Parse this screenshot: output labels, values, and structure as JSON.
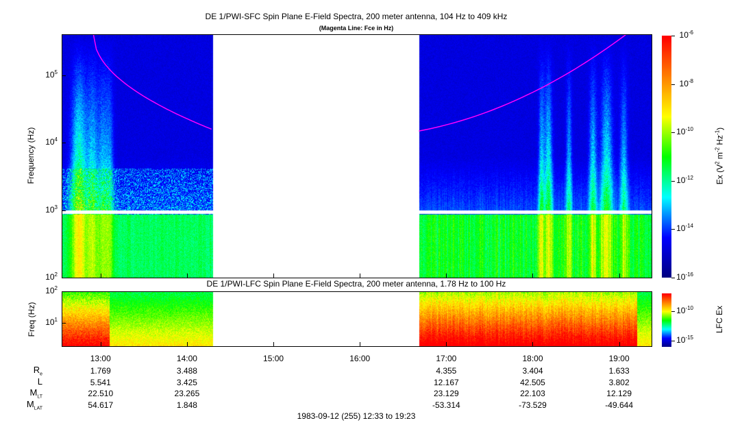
{
  "chart_data": [
    {
      "type": "heatmap",
      "title": "DE 1/PWI-SFC  Spin Plane E-Field Spectra, 200 meter antenna, 104 Hz to 409 kHz",
      "subtitle": "(Magenta Line: Fce in Hz)",
      "ylabel": "Frequency (Hz)",
      "yscale": "log",
      "ylim": [
        100,
        409000
      ],
      "yticks": [
        {
          "b": "10",
          "e": "2",
          "v": 100
        },
        {
          "b": "10",
          "e": "3",
          "v": 1000
        },
        {
          "b": "10",
          "e": "4",
          "v": 10000
        },
        {
          "b": "10",
          "e": "5",
          "v": 100000
        }
      ],
      "xlim": [
        "12:33",
        "19:23"
      ],
      "data_gap": [
        "14:18",
        "16:41"
      ],
      "colorbar": {
        "label": "Ex (V2 m-2 Hz-1)",
        "label_parts": [
          "Ex (V",
          "2",
          " m",
          "-2",
          " Hz",
          "-1",
          ")"
        ],
        "scale": "log",
        "range": [
          1e-16,
          1e-06
        ],
        "ticks": [
          {
            "b": "10",
            "e": "-6",
            "v": -6
          },
          {
            "b": "10",
            "e": "-8",
            "v": -8
          },
          {
            "b": "10",
            "e": "-10",
            "v": -10
          },
          {
            "b": "10",
            "e": "-12",
            "v": -12
          },
          {
            "b": "10",
            "e": "-14",
            "v": -14
          },
          {
            "b": "10",
            "e": "-16",
            "v": -16
          }
        ]
      },
      "fce_line": {
        "color": "#ff00ff",
        "segments": [
          {
            "time": [
              "12:55",
              "14:17"
            ],
            "fce_hz": [
              409000,
              16000
            ]
          },
          {
            "time": [
              "16:41",
              "19:05"
            ],
            "fce_hz": [
              15000,
              409000
            ]
          }
        ]
      }
    },
    {
      "type": "heatmap",
      "title": "DE 1/PWI-LFC  Spin Plane E-Field Spectra, 200 meter antenna, 1.78 Hz to 100 Hz",
      "ylabel": "Freq (Hz)",
      "yscale": "log",
      "ylim": [
        1.78,
        100
      ],
      "yticks": [
        {
          "b": "10",
          "e": "2",
          "v": 100
        },
        {
          "b": "10",
          "e": "1",
          "v": 10
        }
      ],
      "colorbar": {
        "label": "LFC Ex",
        "scale": "log",
        "range": [
          1e-16,
          1e-07
        ],
        "ticks": [
          {
            "b": "10",
            "e": "-10",
            "v": -10
          },
          {
            "b": "10",
            "e": "-15",
            "v": -15
          }
        ]
      }
    }
  ],
  "xticks": [
    "13:00",
    "14:00",
    "15:00",
    "16:00",
    "17:00",
    "18:00",
    "19:00"
  ],
  "ephemeris": {
    "rows": [
      {
        "label": "R",
        "sub": "e",
        "values": [
          "1.769",
          "3.488",
          "",
          "",
          "4.355",
          "3.404",
          "1.633"
        ]
      },
      {
        "label": "L",
        "sub": "",
        "values": [
          "5.541",
          "3.425",
          "",
          "",
          "12.167",
          "42.505",
          "3.802"
        ]
      },
      {
        "label": "M",
        "sub": "LT",
        "values": [
          "22.510",
          "23.265",
          "",
          "",
          "23.129",
          "22.103",
          "12.129"
        ]
      },
      {
        "label": "M",
        "sub": "LAT",
        "values": [
          "54.617",
          "1.848",
          "",
          "",
          "-53.314",
          "-73.529",
          "-49.644"
        ]
      }
    ]
  },
  "footer": "1983-09-12 (255) 12:33 to 19:23",
  "colors": {
    "fce": "#ff00ff",
    "colormap": [
      "#00007f",
      "#0000ff",
      "#00ffff",
      "#00ff00",
      "#ffff00",
      "#ff7f00",
      "#ff0000"
    ]
  }
}
